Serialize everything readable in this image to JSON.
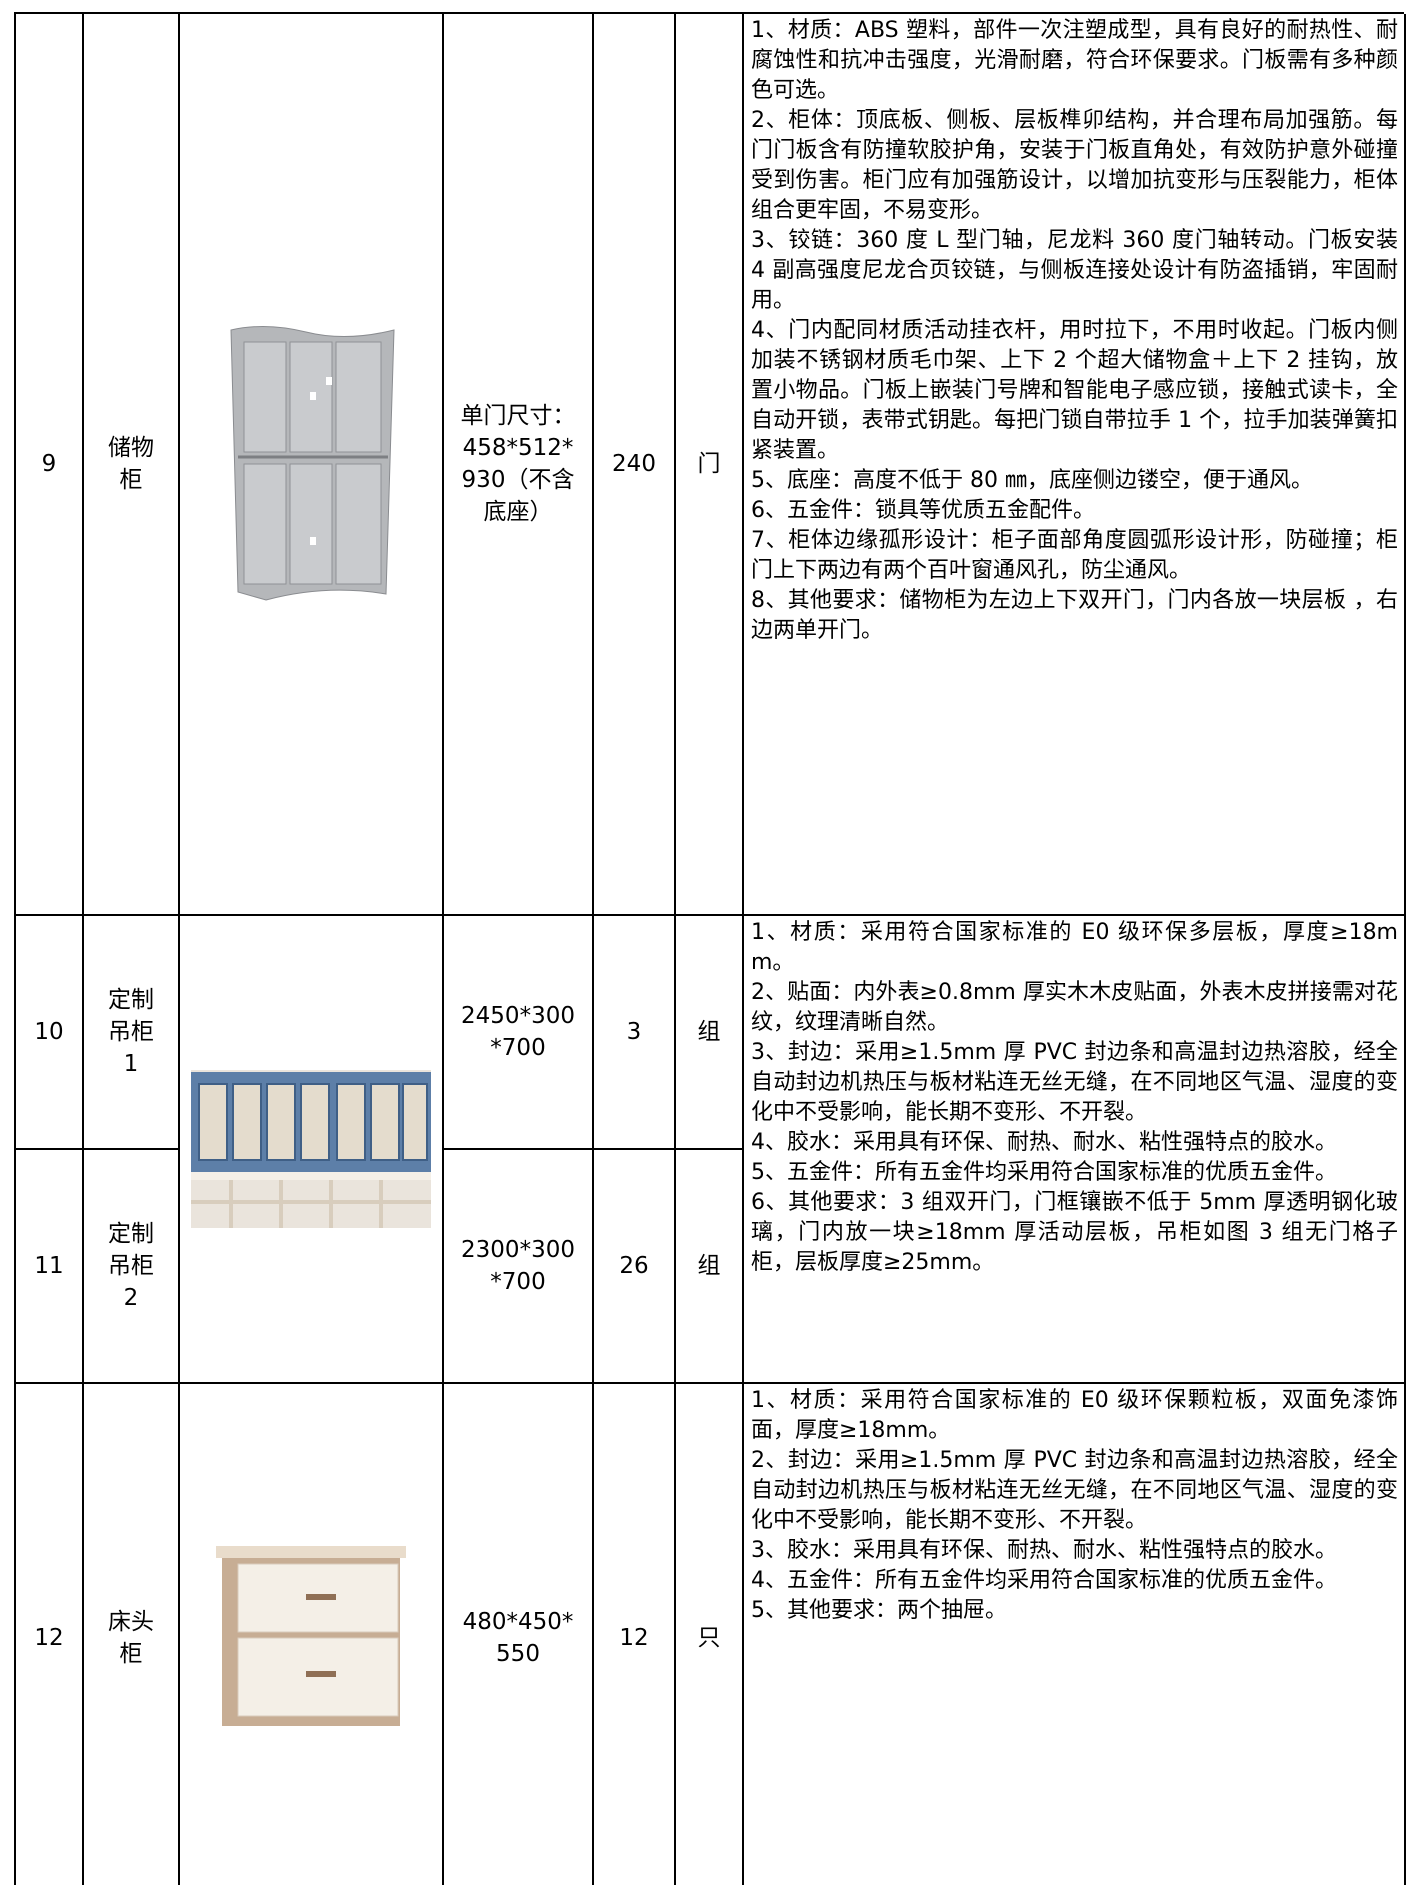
{
  "table": {
    "rows": [
      {
        "no": "9",
        "name": "储物柜",
        "size": "单门尺寸：458*512*930（不含底座）",
        "quantity": "240",
        "unit": "门",
        "description": [
          "1、材质：ABS 塑料，部件一次注塑成型，具有良好的耐热性、耐腐蚀性和抗冲击强度，光滑耐磨，符合环保要求。门板需有多种颜色可选。",
          "2、柜体：顶底板、侧板、层板榫卯结构，并合理布局加强筋。每门门板含有防撞软胶护角，安装于门板直角处，有效防护意外碰撞受到伤害。柜门应有加强筋设计，以增加抗变形与压裂能力，柜体组合更牢固，不易变形。",
          "3、铰链：360 度 L 型门轴，尼龙料 360 度门轴转动。门板安装 4 副高强度尼龙合页铰链，与侧板连接处设计有防盗插销，牢固耐用。",
          "4、门内配同材质活动挂衣杆，用时拉下，不用时收起。门板内侧加装不锈钢材质毛巾架、上下 2 个超大储物盒＋上下 2 挂钩，放置小物品。门板上嵌装门号牌和智能电子感应锁，接触式读卡，全自动开锁，表带式钥匙。每把门锁自带拉手 1 个，拉手加装弹簧扣紧装置。",
          "5、底座：高度不低于 80 ㎜，底座侧边镂空，便于通风。",
          "6、五金件：锁具等优质五金配件。",
          "7、柜体边缘孤形设计：柜子面部角度圆弧形设计形，防碰撞；柜门上下两边有两个百叶窗通风孔，防尘通风。",
          "8、其他要求：储物柜为左边上下双开门，门内各放一块层板 ，右边两单开门。"
        ]
      },
      {
        "no": "10",
        "name": "定制吊柜1",
        "size": "2450*300*700",
        "quantity": "3",
        "unit": "组",
        "description": [
          "1、材质：采用符合国家标准的 E0 级环保多层板，厚度≥18mm。",
          "2、贴面：内外表≥0.8mm 厚实木木皮贴面，外表木皮拼接需对花纹，纹理清晰自然。",
          "3、封边：采用≥1.5mm 厚 PVC 封边条和高温封边热溶胶，经全自动封边机热压与板材粘连无丝无缝，在不同地区气温、湿度的变化中不受影响，能长期不变形、不开裂。",
          "4、胶水：采用具有环保、耐热、耐水、粘性强特点的胶水。",
          "5、五金件：所有五金件均采用符合国家标准的优质五金件。",
          "6、其他要求：3 组双开门，门框镶嵌不低于 5mm 厚透明钢化玻璃，门内放一块≥18mm 厚活动层板，吊柜如图 3 组无门格子柜，层板厚度≥25mm。"
        ]
      },
      {
        "no": "11",
        "name": "定制吊柜2",
        "size": "2300*300*700",
        "quantity": "26",
        "unit": "组"
      },
      {
        "no": "12",
        "name": "床头柜",
        "size": "480*450*550",
        "quantity": "12",
        "unit": "只",
        "description": [
          "1、材质：采用符合国家标准的 E0 级环保颗粒板，双面免漆饰面，厚度≥18mm。",
          "2、封边：采用≥1.5mm 厚 PVC 封边条和高温封边热溶胶，经全自动封边机热压与板材粘连无丝无缝，在不同地区气温、湿度的变化中不受影响，能长期不变形、不开裂。",
          "3、胶水：采用具有环保、耐热、耐水、粘性强特点的胶水。",
          "4、五金件：所有五金件均采用符合国家标准的优质五金件。",
          "5、其他要求：两个抽屉。"
        ]
      }
    ]
  }
}
